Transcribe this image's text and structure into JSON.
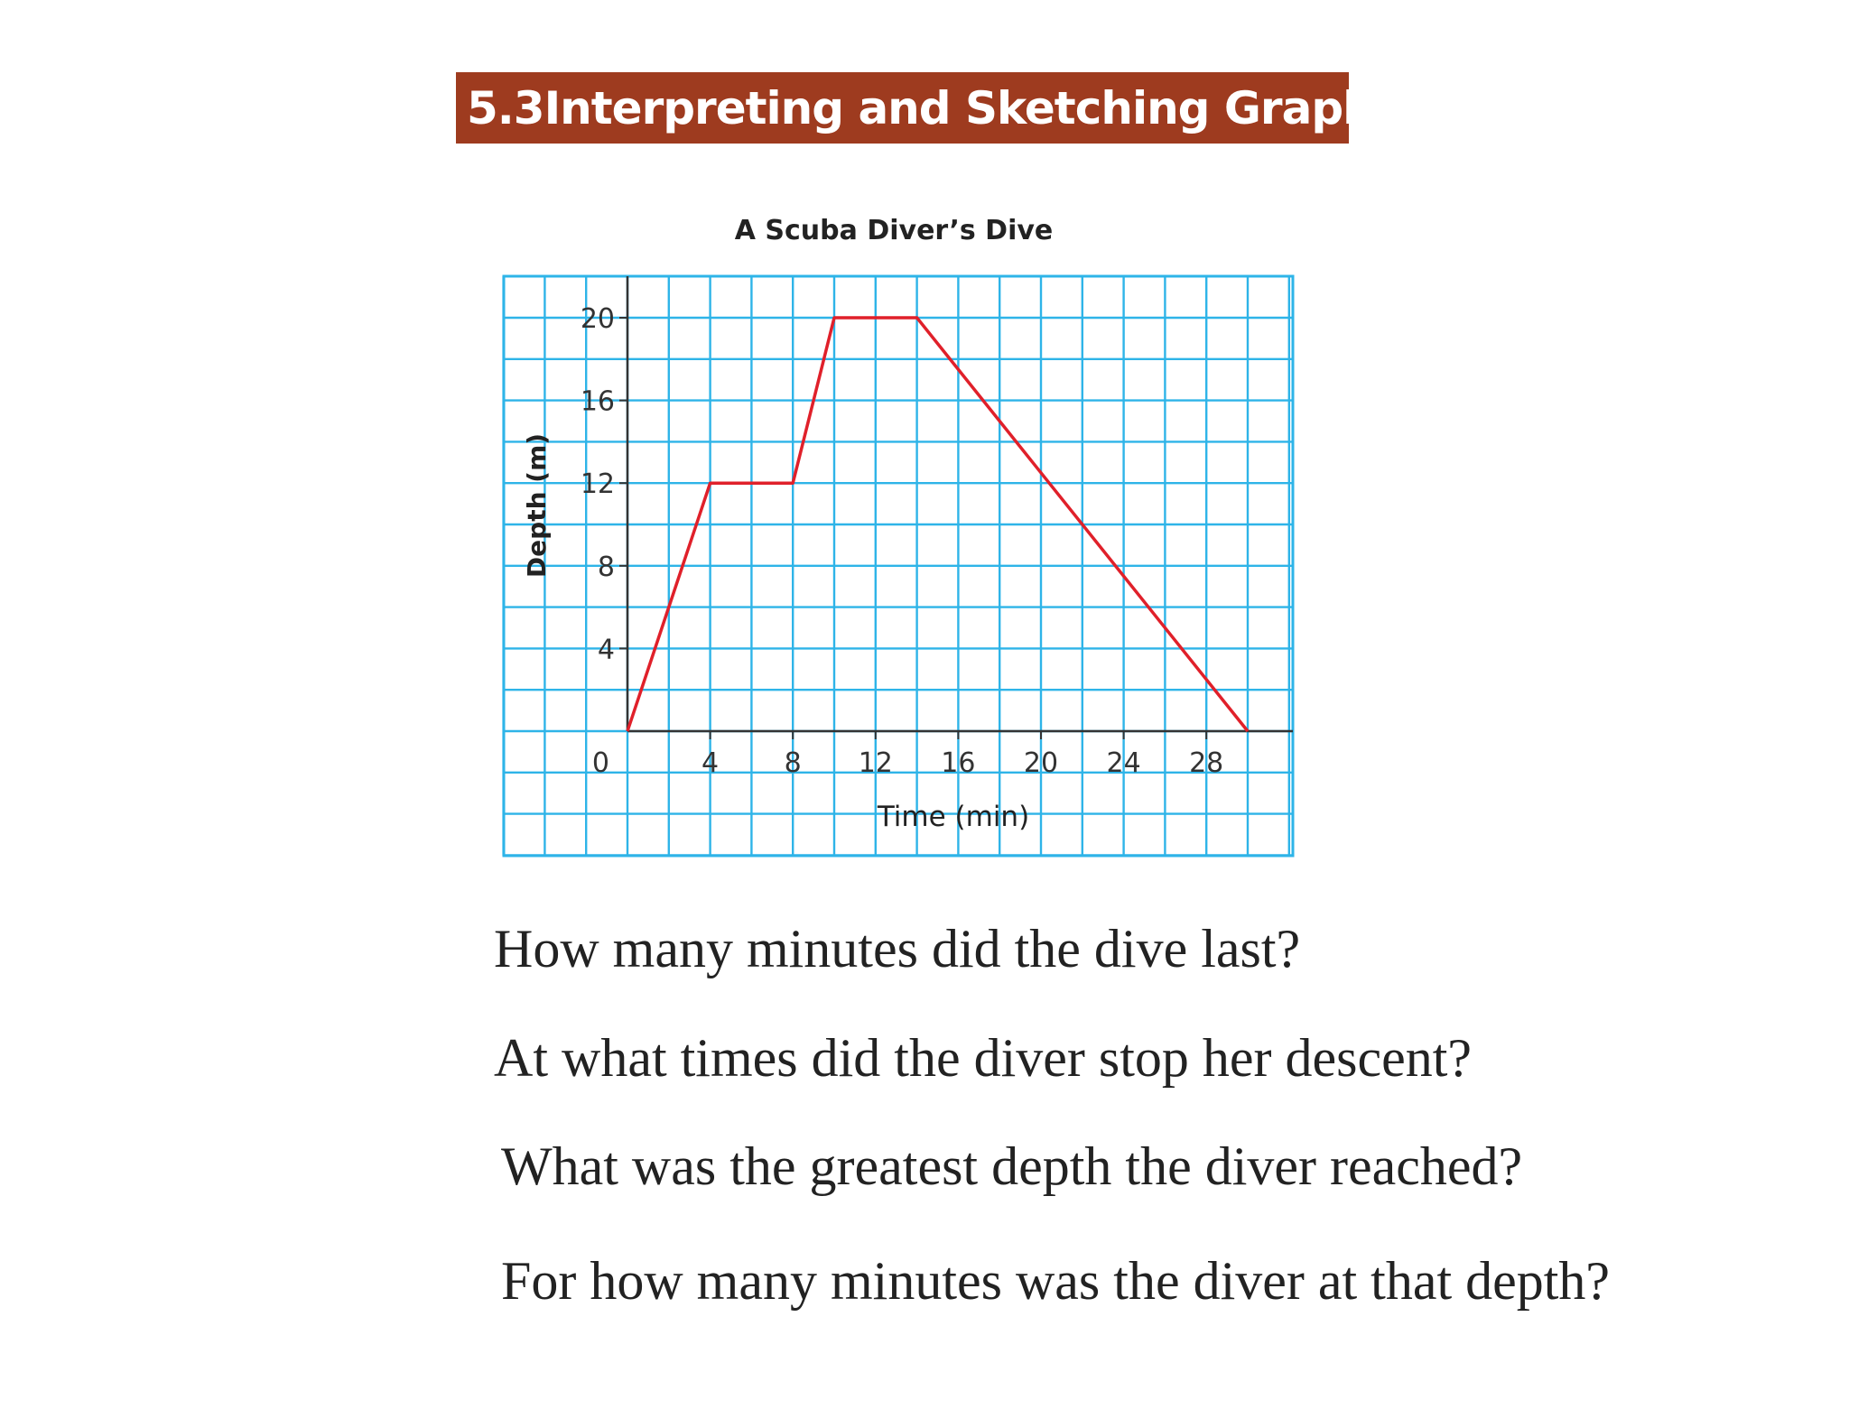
{
  "header": {
    "section_number": "5.3",
    "section_title": "Interpreting and Sketching Graphs",
    "background_color": "#9e3b1f"
  },
  "questions": [
    "How many minutes did the dive last?",
    "At what times did the diver stop her descent?",
    "What was the greatest depth the diver reached?",
    "For how many minutes was the diver at that depth?"
  ],
  "chart_data": {
    "type": "line",
    "title": "A Scuba Diver’s Dive",
    "xlabel": "Time (min)",
    "ylabel": "Depth (m)",
    "xlim": [
      0,
      30
    ],
    "ylim": [
      0,
      20
    ],
    "x_ticks": [
      4,
      8,
      12,
      16,
      20,
      24,
      28
    ],
    "y_ticks": [
      4,
      8,
      12,
      16,
      20
    ],
    "origin_label": "0",
    "grid": true,
    "grid_color": "#2eb4e8",
    "line_color": "#e0202a",
    "series": [
      {
        "points": [
          [
            0,
            0
          ],
          [
            4,
            12
          ],
          [
            8,
            12
          ],
          [
            10,
            20
          ],
          [
            14,
            20
          ],
          [
            30,
            0
          ]
        ]
      }
    ]
  }
}
